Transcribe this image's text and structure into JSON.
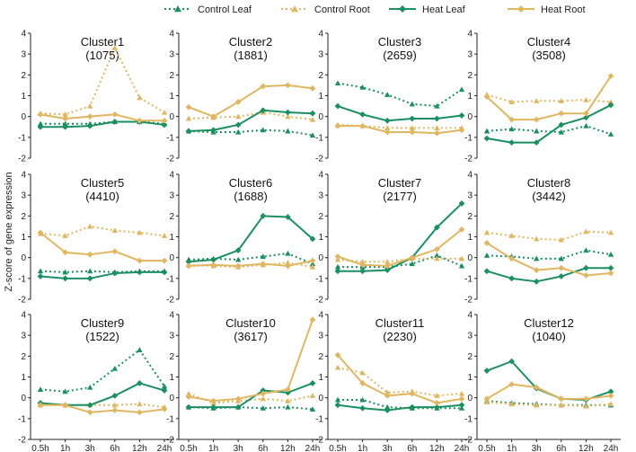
{
  "chart_data": {
    "type": "line",
    "ylabel": "Z-score of gene expression",
    "x": [
      "0.5h",
      "1h",
      "3h",
      "6h",
      "12h",
      "24h"
    ],
    "ylim": [
      -2,
      4
    ],
    "yticks": [
      -2,
      -1,
      0,
      1,
      2,
      3,
      4
    ],
    "series_styles": [
      {
        "name": "Control Leaf",
        "color": "#1b8f62",
        "dashed": true,
        "marker": "triangle"
      },
      {
        "name": "Control Root",
        "color": "#e0b660",
        "dashed": true,
        "marker": "triangle"
      },
      {
        "name": "Heat Leaf",
        "color": "#1b8f62",
        "dashed": false,
        "marker": "diamond"
      },
      {
        "name": "Heat Root",
        "color": "#e0b660",
        "dashed": false,
        "marker": "diamond"
      }
    ],
    "panels": [
      {
        "title": "Cluster1",
        "count": "(1075)",
        "series": [
          [
            -0.35,
            -0.35,
            -0.35,
            -0.25,
            -0.25,
            -0.35
          ],
          [
            0.15,
            0.1,
            0.5,
            3.3,
            0.9,
            0.2
          ],
          [
            -0.5,
            -0.5,
            -0.45,
            -0.25,
            -0.25,
            -0.4
          ],
          [
            0.1,
            -0.1,
            0.0,
            0.1,
            -0.2,
            -0.2
          ]
        ]
      },
      {
        "title": "Cluster2",
        "count": "(1881)",
        "series": [
          [
            -0.7,
            -0.75,
            -0.75,
            -0.65,
            -0.7,
            -0.9
          ],
          [
            -0.1,
            -0.05,
            0.0,
            0.2,
            0.0,
            -0.15
          ],
          [
            -0.7,
            -0.65,
            -0.4,
            0.3,
            0.2,
            0.15
          ],
          [
            0.45,
            0.0,
            0.7,
            1.45,
            1.5,
            1.35
          ]
        ]
      },
      {
        "title": "Cluster3",
        "count": "(2659)",
        "series": [
          [
            1.6,
            1.4,
            1.05,
            0.6,
            0.5,
            1.3
          ],
          [
            -0.4,
            -0.45,
            -0.55,
            -0.55,
            -0.55,
            -0.55
          ],
          [
            0.5,
            0.1,
            -0.2,
            -0.1,
            -0.1,
            0.05
          ],
          [
            -0.45,
            -0.45,
            -0.75,
            -0.75,
            -0.8,
            -0.65
          ]
        ]
      },
      {
        "title": "Cluster4",
        "count": "(3508)",
        "series": [
          [
            -0.7,
            -0.6,
            -0.7,
            -0.75,
            -0.45,
            -0.85
          ],
          [
            1.05,
            0.7,
            0.75,
            0.75,
            0.8,
            0.7
          ],
          [
            -1.05,
            -1.25,
            -1.25,
            -0.4,
            -0.05,
            0.55
          ],
          [
            0.95,
            -0.15,
            -0.15,
            0.15,
            0.15,
            1.95
          ]
        ]
      },
      {
        "title": "Cluster5",
        "count": "(4410)",
        "series": [
          [
            -0.65,
            -0.7,
            -0.65,
            -0.7,
            -0.65,
            -0.65
          ],
          [
            1.15,
            1.05,
            1.5,
            1.3,
            1.2,
            1.05
          ],
          [
            -0.9,
            -1.0,
            -1.0,
            -0.75,
            -0.7,
            -0.7
          ],
          [
            1.2,
            0.25,
            0.15,
            0.3,
            -0.15,
            -0.15
          ]
        ]
      },
      {
        "title": "Cluster6",
        "count": "(1688)",
        "series": [
          [
            -0.1,
            -0.05,
            -0.1,
            0.05,
            0.2,
            -0.3
          ],
          [
            -0.35,
            -0.4,
            -0.45,
            -0.35,
            -0.25,
            -0.45
          ],
          [
            -0.2,
            -0.1,
            0.35,
            2.0,
            1.95,
            0.9
          ],
          [
            -0.4,
            -0.35,
            -0.4,
            -0.3,
            -0.4,
            -0.15
          ]
        ]
      },
      {
        "title": "Cluster7",
        "count": "(2177)",
        "series": [
          [
            -0.45,
            -0.45,
            -0.45,
            -0.3,
            0.1,
            -0.4
          ],
          [
            -0.1,
            -0.2,
            -0.2,
            -0.05,
            -0.05,
            -0.05
          ],
          [
            -0.65,
            -0.65,
            -0.6,
            0.0,
            1.45,
            2.6
          ],
          [
            0.05,
            -0.35,
            -0.4,
            0.0,
            0.4,
            1.35
          ]
        ]
      },
      {
        "title": "Cluster8",
        "count": "(3442)",
        "series": [
          [
            0.1,
            0.05,
            -0.05,
            -0.05,
            0.35,
            0.15
          ],
          [
            1.2,
            1.05,
            0.9,
            0.85,
            1.25,
            1.2
          ],
          [
            -0.65,
            -1.0,
            -1.15,
            -0.9,
            -0.5,
            -0.5
          ],
          [
            0.7,
            -0.05,
            -0.6,
            -0.5,
            -0.85,
            -0.75
          ]
        ]
      },
      {
        "title": "Cluster9",
        "count": "(1522)",
        "series": [
          [
            0.4,
            0.3,
            0.5,
            1.4,
            2.3,
            0.55
          ],
          [
            -0.35,
            -0.35,
            -0.35,
            -0.35,
            -0.3,
            -0.45
          ],
          [
            -0.25,
            -0.35,
            -0.35,
            0.1,
            0.7,
            0.35
          ],
          [
            -0.35,
            -0.35,
            -0.7,
            -0.6,
            -0.7,
            -0.55
          ]
        ]
      },
      {
        "title": "Cluster10",
        "count": "(3617)",
        "series": [
          [
            -0.45,
            -0.5,
            -0.45,
            -0.5,
            -0.45,
            -0.55
          ],
          [
            0.2,
            -0.25,
            -0.15,
            -0.05,
            -0.15,
            0.1
          ],
          [
            -0.45,
            -0.45,
            -0.45,
            0.35,
            0.25,
            0.7
          ],
          [
            0.05,
            -0.15,
            -0.05,
            0.2,
            0.4,
            3.75
          ]
        ]
      },
      {
        "title": "Cluster11",
        "count": "(2230)",
        "series": [
          [
            -0.1,
            -0.1,
            -0.45,
            -0.5,
            -0.5,
            -0.5
          ],
          [
            1.45,
            1.2,
            0.25,
            0.3,
            0.1,
            0.2
          ],
          [
            -0.35,
            -0.5,
            -0.6,
            -0.45,
            -0.45,
            -0.35
          ],
          [
            2.05,
            0.7,
            0.1,
            0.2,
            -0.25,
            -0.05
          ]
        ]
      },
      {
        "title": "Cluster12",
        "count": "(1040)",
        "series": [
          [
            -0.15,
            -0.25,
            -0.3,
            -0.35,
            -0.35,
            -0.35
          ],
          [
            -0.2,
            -0.3,
            -0.35,
            -0.35,
            -0.4,
            -0.3
          ],
          [
            1.3,
            1.75,
            0.45,
            -0.05,
            -0.1,
            0.3
          ],
          [
            -0.05,
            0.65,
            0.5,
            -0.05,
            -0.05,
            0.1
          ]
        ]
      }
    ]
  }
}
